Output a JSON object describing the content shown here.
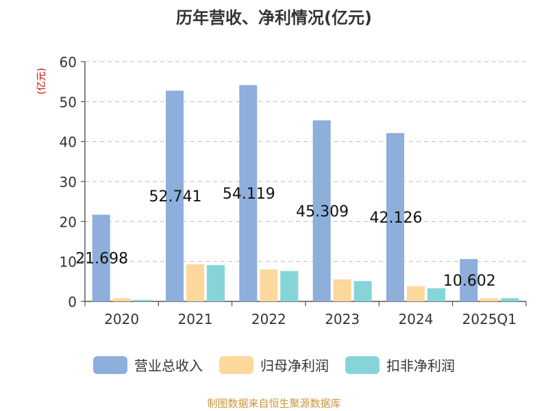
{
  "title": "历年营收、净利情况(亿元)",
  "unit_label": "(亿元)",
  "source": "制图数据来自恒生聚源数据库",
  "colors": {
    "revenue": "#8eaedb",
    "net_profit": "#fdd89c",
    "deducted_profit": "#85d5d8",
    "unit": "#cc0000",
    "source": "#c8963e"
  },
  "chart_data": {
    "type": "bar",
    "categories": [
      "2020",
      "2021",
      "2022",
      "2023",
      "2024",
      "2025Q1"
    ],
    "ylim": [
      0,
      60
    ],
    "yticks": [
      0,
      10,
      20,
      30,
      40,
      50,
      60
    ],
    "grid": true,
    "legend_position": "bottom",
    "series": [
      {
        "name": "营业总收入",
        "values": [
          21.698,
          52.741,
          54.119,
          45.309,
          42.126,
          10.602
        ],
        "labels": [
          "21.698",
          "52.741",
          "54.119",
          "45.309",
          "42.126",
          "10.602"
        ]
      },
      {
        "name": "归母净利润",
        "values": [
          0.8,
          9.3,
          8.0,
          5.5,
          3.8,
          0.8
        ]
      },
      {
        "name": "扣非净利润",
        "values": [
          0.4,
          9.1,
          7.6,
          5.1,
          3.3,
          0.8
        ]
      }
    ]
  }
}
